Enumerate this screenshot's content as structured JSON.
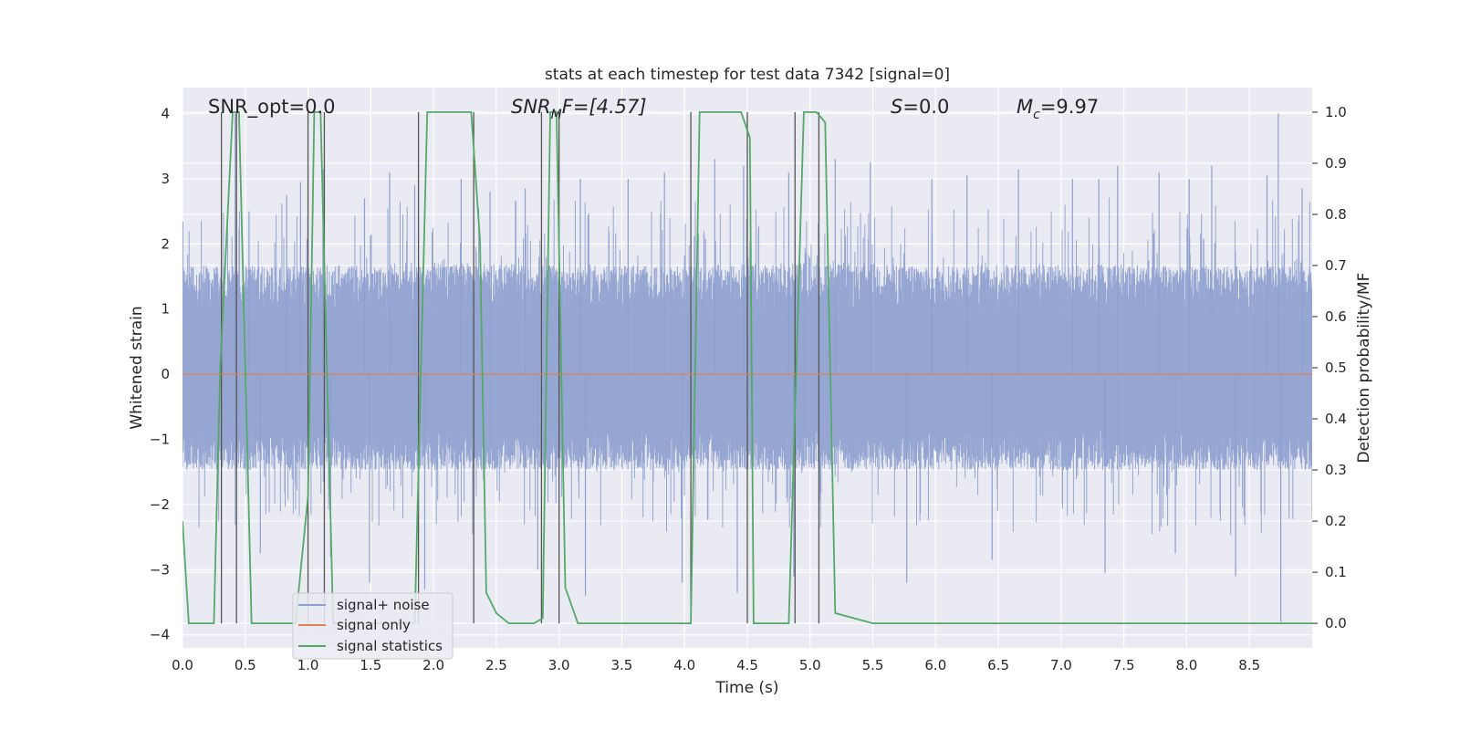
{
  "chart_data": {
    "type": "line",
    "title": "stats at each timestep for test data 7342 [signal=0]",
    "xlabel": "Time (s)",
    "ylabel_left": "Whitened strain",
    "ylabel_right": "Detection probability/MF",
    "xlim": [
      0.0,
      9.0
    ],
    "ylim_left": [
      -4.2,
      4.4
    ],
    "ylim_right": [
      -0.048,
      1.048
    ],
    "xticks": [
      "0.0",
      "0.5",
      "1.0",
      "1.5",
      "2.0",
      "2.5",
      "3.0",
      "3.5",
      "4.0",
      "4.5",
      "5.0",
      "5.5",
      "6.0",
      "6.5",
      "7.0",
      "7.5",
      "8.0",
      "8.5"
    ],
    "yticks_left": [
      "4",
      "3",
      "2",
      "1",
      "0",
      "−1",
      "−2",
      "−3",
      "−4"
    ],
    "yticks_right": [
      "1.0",
      "0.9",
      "0.8",
      "0.7",
      "0.6",
      "0.5",
      "0.4",
      "0.3",
      "0.2",
      "0.1",
      "0.0"
    ],
    "grid": true,
    "legend_position": "lower-left",
    "annotations": {
      "snr_opt": "SNR_opt=0.0",
      "snr_mf_main": "SNR",
      "snr_mf_sub": "M",
      "snr_mf_rest": "F=[4.57]",
      "s_main": "S",
      "s_rest": "=0.0",
      "mc_main": "M",
      "mc_sub": "c",
      "mc_rest": "=9.97"
    },
    "series": [
      {
        "name": "signal+ noise",
        "color": "#8c9fce",
        "axis": "left",
        "envelope": {
          "x": [
            0.0,
            1.0,
            2.0,
            3.0,
            4.0,
            5.0,
            6.0,
            7.0,
            8.0,
            9.0
          ],
          "typical_high": [
            1.7,
            1.7,
            1.75,
            1.7,
            1.7,
            1.75,
            1.7,
            1.75,
            1.7,
            1.7
          ],
          "typical_low": [
            -1.5,
            -1.5,
            -1.5,
            -1.5,
            -1.5,
            -1.5,
            -1.5,
            -1.5,
            -1.5,
            -1.5
          ]
        },
        "spikes": [
          {
            "x": 0.42,
            "y": 4.0
          },
          {
            "x": 0.53,
            "y": 2.5
          },
          {
            "x": 0.62,
            "y": -2.75
          },
          {
            "x": 0.83,
            "y": 2.75
          },
          {
            "x": 0.94,
            "y": 2.95
          },
          {
            "x": 1.12,
            "y": 3.15
          },
          {
            "x": 1.18,
            "y": -2.8
          },
          {
            "x": 1.45,
            "y": 2.7
          },
          {
            "x": 1.49,
            "y": -3.2
          },
          {
            "x": 1.65,
            "y": 3.1
          },
          {
            "x": 1.85,
            "y": 2.9
          },
          {
            "x": 1.93,
            "y": -3.3
          },
          {
            "x": 2.22,
            "y": 3.0
          },
          {
            "x": 2.45,
            "y": 2.8
          },
          {
            "x": 2.73,
            "y": 2.85
          },
          {
            "x": 2.83,
            "y": -3.0
          },
          {
            "x": 3.17,
            "y": 3.0
          },
          {
            "x": 3.21,
            "y": -3.4
          },
          {
            "x": 3.55,
            "y": 3.0
          },
          {
            "x": 3.84,
            "y": 3.1
          },
          {
            "x": 3.98,
            "y": -3.2
          },
          {
            "x": 4.24,
            "y": 3.3
          },
          {
            "x": 4.42,
            "y": -3.35
          },
          {
            "x": 4.47,
            "y": 3.2
          },
          {
            "x": 4.83,
            "y": 3.1
          },
          {
            "x": 4.87,
            "y": -3.1
          },
          {
            "x": 5.2,
            "y": 3.3
          },
          {
            "x": 5.48,
            "y": 3.25
          },
          {
            "x": 5.77,
            "y": -3.2
          },
          {
            "x": 5.97,
            "y": 3.0
          },
          {
            "x": 6.25,
            "y": 3.05
          },
          {
            "x": 6.45,
            "y": -2.85
          },
          {
            "x": 6.66,
            "y": 3.15
          },
          {
            "x": 7.09,
            "y": 3.0
          },
          {
            "x": 7.3,
            "y": 3.0
          },
          {
            "x": 7.35,
            "y": -3.05
          },
          {
            "x": 7.45,
            "y": 3.2
          },
          {
            "x": 7.78,
            "y": 3.1
          },
          {
            "x": 7.91,
            "y": -2.75
          },
          {
            "x": 8.02,
            "y": 3.0
          },
          {
            "x": 8.2,
            "y": 3.2
          },
          {
            "x": 8.39,
            "y": -3.1
          },
          {
            "x": 8.64,
            "y": 3.05
          },
          {
            "x": 8.73,
            "y": 4.0
          },
          {
            "x": 8.75,
            "y": -3.8
          },
          {
            "x": 8.92,
            "y": 2.85
          }
        ]
      },
      {
        "name": "signal only",
        "color": "#dd8452",
        "axis": "left",
        "x": [
          0.0,
          9.0
        ],
        "y": [
          0.0,
          0.0
        ]
      },
      {
        "name": "signal statistics",
        "color": "#55a868",
        "axis": "right",
        "x": [
          0.0,
          0.05,
          0.25,
          0.3,
          0.4,
          0.45,
          0.55,
          0.9,
          1.0,
          1.05,
          1.1,
          1.2,
          1.85,
          1.95,
          2.05,
          2.3,
          2.37,
          2.42,
          2.5,
          2.6,
          2.8,
          2.87,
          2.93,
          2.98,
          3.05,
          3.15,
          3.35,
          3.45,
          4.05,
          4.12,
          4.45,
          4.52,
          4.55,
          4.83,
          4.95,
          5.05,
          5.12,
          5.2,
          5.5,
          9.0
        ],
        "y": [
          0.2,
          0.0,
          0.0,
          0.5,
          1.0,
          1.0,
          0.0,
          0.0,
          0.25,
          1.0,
          1.0,
          0.0,
          0.0,
          1.0,
          1.0,
          1.0,
          0.75,
          0.06,
          0.02,
          0.0,
          0.0,
          0.01,
          1.0,
          1.0,
          0.07,
          0.0,
          0.0,
          0.0,
          0.0,
          1.0,
          1.0,
          0.95,
          0.0,
          0.0,
          1.0,
          1.0,
          0.98,
          0.02,
          0.0,
          0.0
        ]
      }
    ],
    "vertical_markers": {
      "color": "#555555",
      "x": [
        0.31,
        0.43,
        1.0,
        1.13,
        1.88,
        2.32,
        2.86,
        3.0,
        4.05,
        4.5,
        4.88,
        5.07
      ]
    }
  }
}
